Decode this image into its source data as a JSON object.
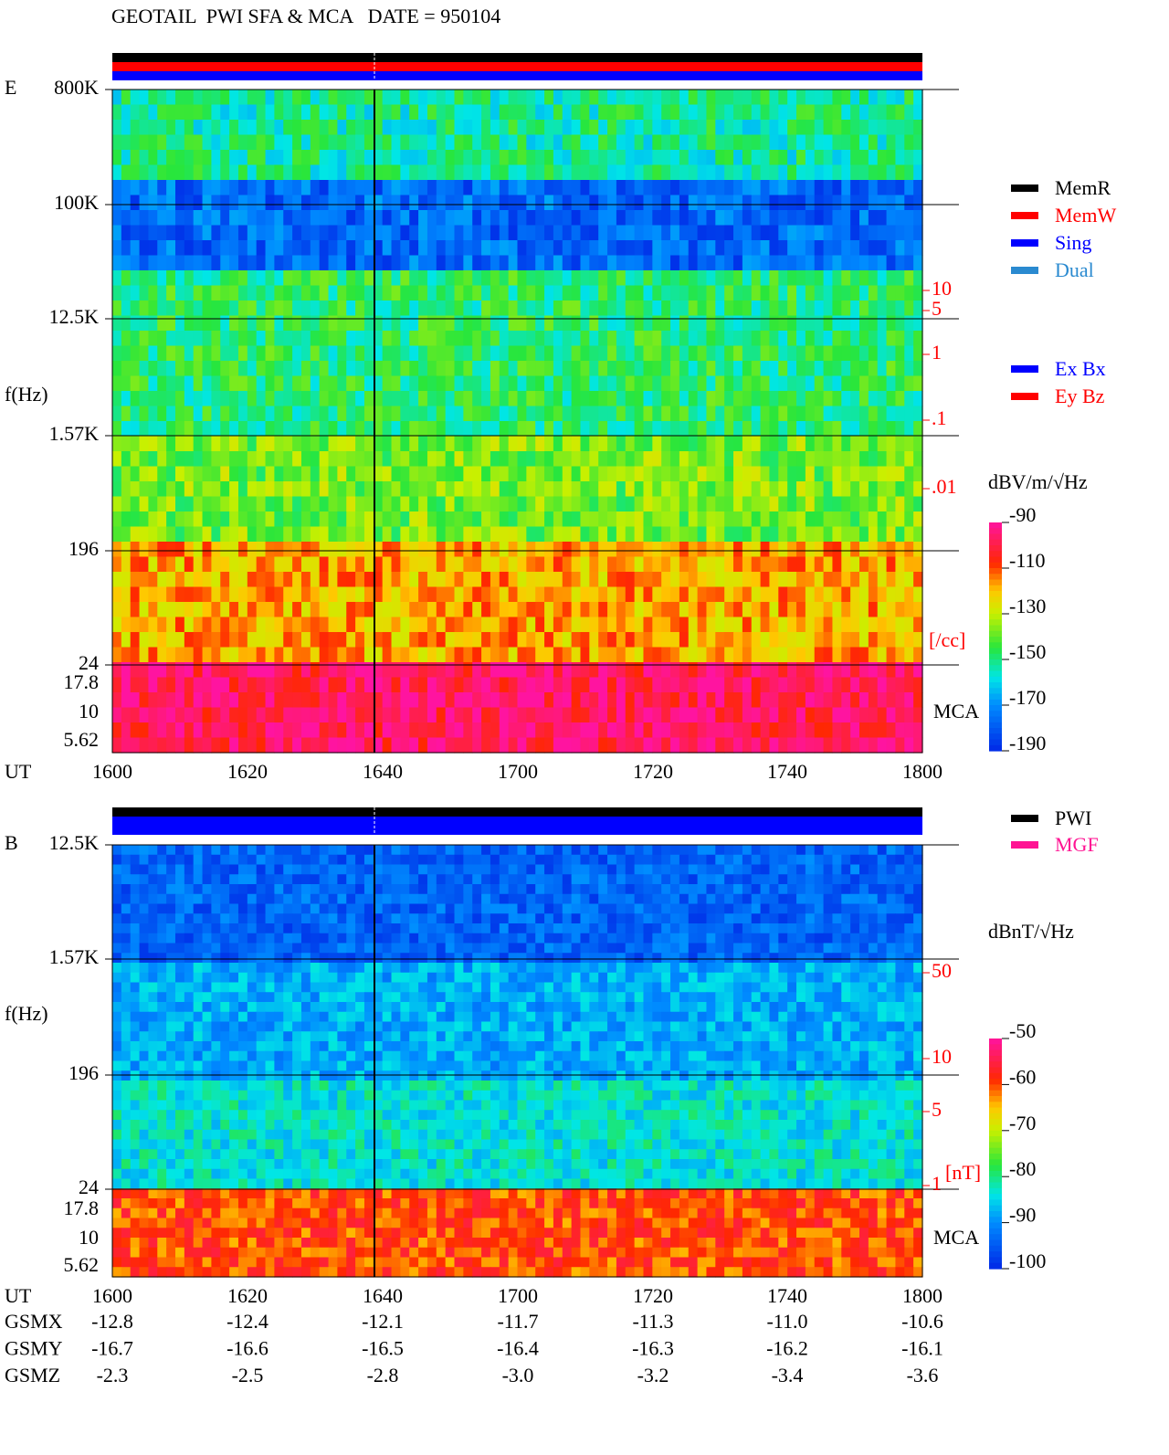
{
  "title": "GEOTAIL  PWI SFA & MCA   DATE = 950104",
  "chart_data": {
    "type": "spectrogram",
    "x_label": "UT",
    "x_ticks": [
      "1600",
      "1620",
      "1640",
      "1700",
      "1720",
      "1740",
      "1800"
    ],
    "panels": [
      {
        "name": "E",
        "y_label": "f(Hz)",
        "y_ticks": [
          "800K",
          "100K",
          "12.5K",
          "1.57K",
          "196",
          "24",
          "17.8",
          "10",
          "5.62"
        ],
        "mca_label": "MCA",
        "density_ticks": [
          "10",
          "5",
          "1",
          ".1",
          ".01"
        ],
        "density_unit": "[/cc]",
        "colorbar_label": "dBV/m/√Hz",
        "clim": [
          -190,
          -90
        ],
        "cticks": [
          -90,
          -110,
          -130,
          -150,
          -170,
          -190
        ]
      },
      {
        "name": "B",
        "y_label": "f(Hz)",
        "y_ticks": [
          "12.5K",
          "1.57K",
          "196",
          "24",
          "17.8",
          "10",
          "5.62"
        ],
        "mca_label": "MCA",
        "density_ticks": [
          "50",
          "10",
          "5",
          "1"
        ],
        "density_unit": "[nT]",
        "colorbar_label": "dBnT/√Hz",
        "clim": [
          -100,
          -50
        ],
        "cticks": [
          -50,
          -60,
          -70,
          -80,
          -90,
          -100
        ]
      }
    ],
    "legends": [
      {
        "items": [
          {
            "name": "MemR",
            "color": "#000000"
          },
          {
            "name": "MemW",
            "color": "#ff0000"
          },
          {
            "name": "Sing",
            "color": "#0000ff"
          },
          {
            "name": "Dual",
            "color": "#2a8ad0"
          }
        ]
      },
      {
        "items": [
          {
            "name": "Ex Bx",
            "color": "#0000ff"
          },
          {
            "name": "Ey Bz",
            "color": "#ff0000"
          }
        ]
      },
      {
        "items": [
          {
            "name": "PWI",
            "color": "#000000"
          },
          {
            "name": "MGF",
            "color": "#ff1493"
          }
        ]
      }
    ],
    "orbit": [
      {
        "label": "GSMX",
        "values": [
          "-12.8",
          "-12.4",
          "-12.1",
          "-11.7",
          "-11.3",
          "-11.0",
          "-10.6"
        ]
      },
      {
        "label": "GSMY",
        "values": [
          "-16.7",
          "-16.6",
          "-16.5",
          "-16.4",
          "-16.3",
          "-16.2",
          "-16.1"
        ]
      },
      {
        "label": "GSMZ",
        "values": [
          "-2.3",
          "-2.5",
          "-2.8",
          "-3.0",
          "-3.2",
          "-3.4",
          "-3.6"
        ]
      }
    ]
  }
}
